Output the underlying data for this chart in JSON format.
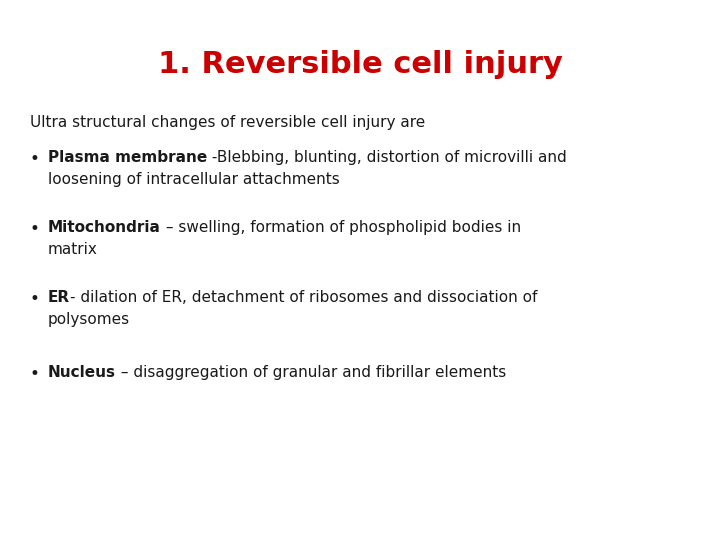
{
  "title": "1. Reversible cell injury",
  "title_color": "#cc0000",
  "title_fontsize": 22,
  "background_color": "#ffffff",
  "subtitle": "Ultra structural changes of reversible cell injury are",
  "subtitle_fontsize": 11,
  "bullet_fontsize": 11,
  "text_color": "#1a1a1a",
  "font_family": "DejaVu Sans",
  "bullets": [
    {
      "bold_part": "Plasma membrane",
      "normal_part": " -Blebbing, blunting, distortion of microvilli and",
      "continuation": "loosening of intracellular attachments"
    },
    {
      "bold_part": "Mitochondria",
      "normal_part": " – swelling, formation of phospholipid bodies in",
      "continuation": "matrix"
    },
    {
      "bold_part": "ER",
      "normal_part": "- dilation of ER, detachment of ribosomes and dissociation of",
      "continuation": "polysomes"
    },
    {
      "bold_part": "Nucleus",
      "normal_part": " – disaggregation of granular and fibrillar elements",
      "continuation": ""
    }
  ]
}
